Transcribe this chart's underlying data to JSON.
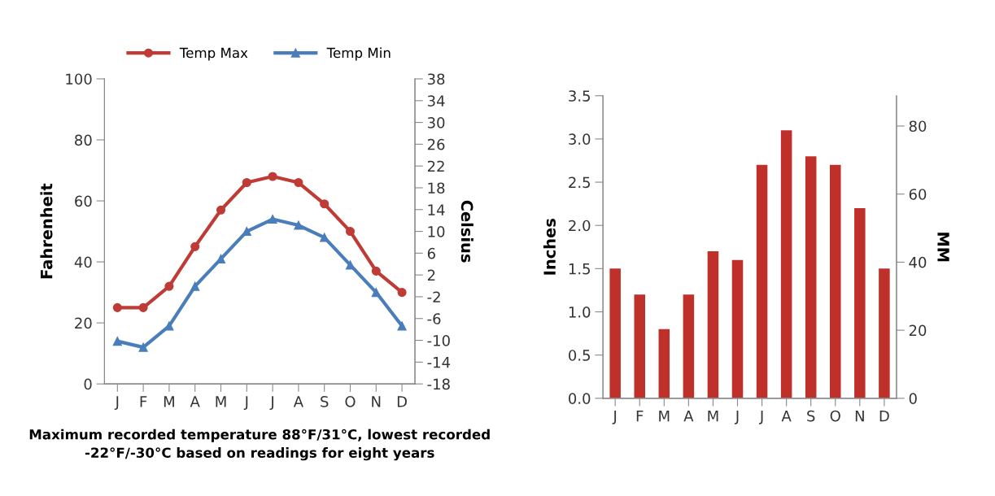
{
  "chart_data": [
    {
      "type": "line",
      "categories": [
        "J",
        "F",
        "M",
        "A",
        "M",
        "J",
        "J",
        "A",
        "S",
        "O",
        "N",
        "D"
      ],
      "series": [
        {
          "name": "Temp Max",
          "color": "#be3b36",
          "marker": "circle",
          "values": [
            25,
            25,
            32,
            45,
            57,
            66,
            68,
            66,
            59,
            50,
            37,
            30
          ]
        },
        {
          "name": "Temp Min",
          "color": "#4a7ebb",
          "marker": "triangle",
          "values": [
            14,
            12,
            19,
            32,
            41,
            50,
            54,
            52,
            48,
            39,
            30,
            19
          ]
        }
      ],
      "ylabel": "Fahrenheit",
      "y2label": "Celsius",
      "ylim": [
        0,
        100
      ],
      "yticks": [
        0,
        20,
        40,
        60,
        80,
        100
      ],
      "y2lim": [
        -18,
        38
      ],
      "y2ticks": [
        -18,
        -14,
        -10,
        -6,
        -2,
        2,
        6,
        10,
        14,
        18,
        22,
        26,
        30,
        34,
        38
      ],
      "legend": "top",
      "grid": false,
      "line_style": "solid",
      "annotations": [
        "Maximum recorded temperature 88°F/31°C, lowest recorded -22°F/-30°C based on readings for eight years"
      ]
    },
    {
      "type": "bar",
      "categories": [
        "J",
        "F",
        "M",
        "A",
        "M",
        "J",
        "J",
        "A",
        "S",
        "O",
        "N",
        "D"
      ],
      "series": [
        {
          "color": "#c0302b",
          "values": [
            1.5,
            1.2,
            0.8,
            1.2,
            1.7,
            1.6,
            2.7,
            3.1,
            2.8,
            2.7,
            2.2,
            1.5
          ]
        }
      ],
      "ylabel": "Inches",
      "y2label": "MM",
      "ylim": [
        0,
        3.5
      ],
      "yticks": [
        {
          "value": 0,
          "label": "0.0"
        },
        {
          "value": 0.5,
          "label": "0.5"
        },
        {
          "value": 1,
          "label": "1.0"
        },
        {
          "value": 1.5,
          "label": "1.5"
        },
        {
          "value": 2,
          "label": "2.0"
        },
        {
          "value": 2.5,
          "label": "2.5"
        },
        {
          "value": 3,
          "label": "3.0"
        },
        {
          "value": 3.5,
          "label": "3.5"
        }
      ],
      "y2lim": [
        0,
        88.9
      ],
      "y2ticks": [
        0,
        20,
        40,
        60,
        80
      ],
      "grid": false
    }
  ]
}
